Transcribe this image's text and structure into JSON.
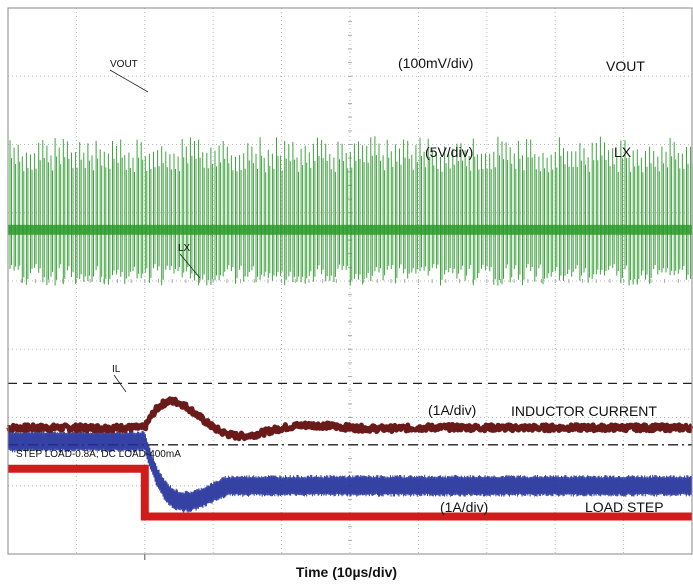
{
  "chart_data": {
    "type": "line",
    "xlabel": "Time (10µs/div)",
    "x_divisions": 10,
    "y_divisions": 8,
    "grid": true,
    "trigger_marker_div": 2,
    "traces": [
      {
        "name": "VOUT",
        "scale_label": "(100mV/div)",
        "trace_label": "VOUT",
        "color": "#6b1a1a",
        "steady_level_div": 1.85,
        "overshoot_peak_div": 2.5,
        "undershoot_div": 1.6,
        "reference_lines": [
          "dashed",
          "dash-dot"
        ]
      },
      {
        "name": "LX",
        "scale_label": "(5V/div)",
        "trace_label": "LX",
        "color": "#2a9a2a",
        "baseline_div": 4.75,
        "waveform": "switching"
      },
      {
        "name": "INDUCTOR CURRENT",
        "scale_label": "(1A/div)",
        "trace_label": "IL",
        "color": "#1f2d9a",
        "before_step_div": 1.65,
        "after_step_div": 1.0,
        "dip_div": 0.6
      },
      {
        "name": "LOAD STEP",
        "scale_label": "(1A/div)",
        "color": "#d21c1c",
        "high_level_div": 1.25,
        "low_level_div": 0.55,
        "step_time_div": 2.0,
        "annotation": "STEP LOAD-0.8A; DC LOAD-400mA"
      }
    ]
  }
}
